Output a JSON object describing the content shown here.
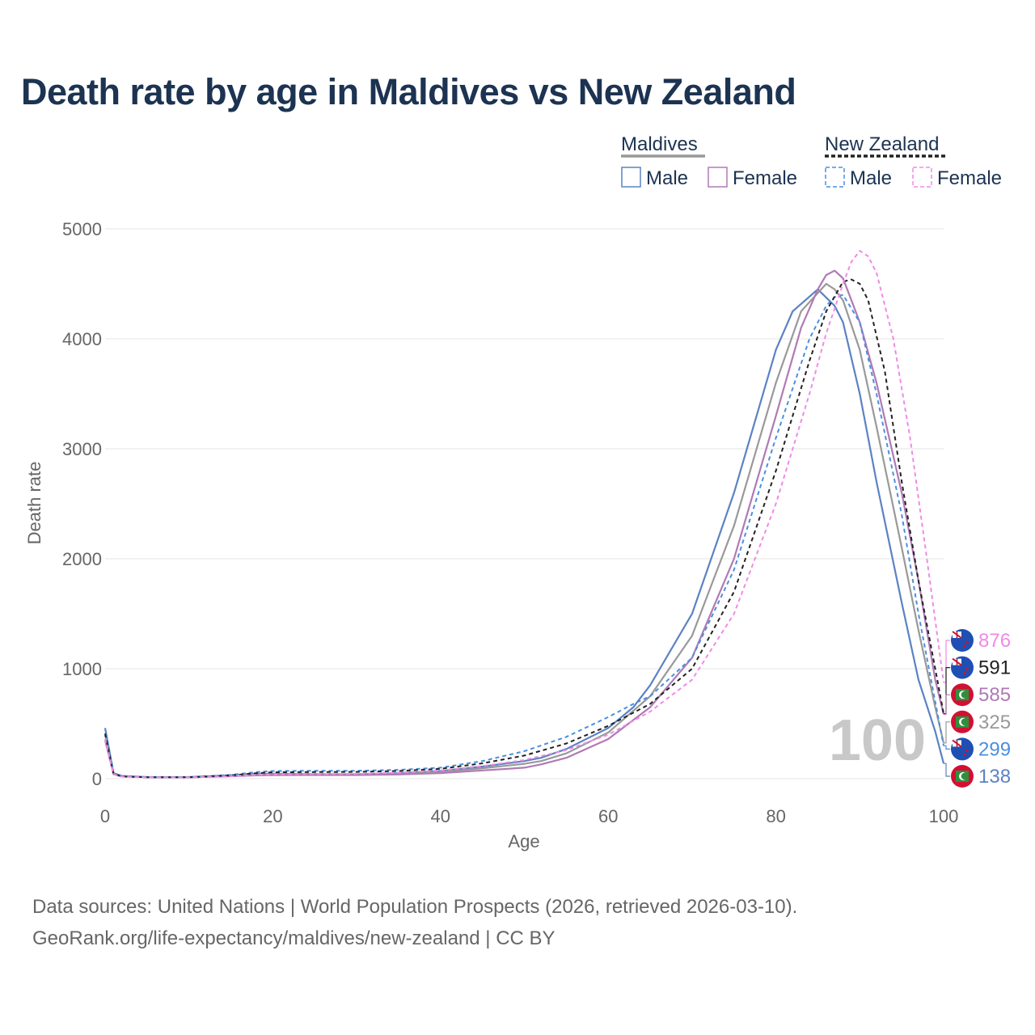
{
  "title": "Death rate by age in Maldives vs New Zealand",
  "source": {
    "line1": "Data sources: United Nations | World Population Prospects (2026, retrieved 2026-03-10).",
    "line2": "GeoRank.org/life-expectancy/maldives/new-zealand | CC BY"
  },
  "legend": {
    "groups": [
      {
        "name": "Maldives",
        "color": "#999999",
        "dash": "solid"
      },
      {
        "name": "New Zealand",
        "color": "#222222",
        "dash": "dashed"
      }
    ],
    "items": [
      {
        "label": "Male",
        "color": "#5b82c4",
        "dash": "solid"
      },
      {
        "label": "Female",
        "color": "#b07ab5",
        "dash": "solid"
      },
      {
        "label": "Male",
        "color": "#4a8fe0",
        "dash": "dashed"
      },
      {
        "label": "Female",
        "color": "#f08ae6",
        "dash": "dashed"
      }
    ]
  },
  "chart_data": {
    "type": "line",
    "title": "Death rate by age in Maldives vs New Zealand",
    "xlabel": "Age",
    "ylabel": "Death rate",
    "xlim": [
      0,
      100
    ],
    "ylim": [
      0,
      5000
    ],
    "xticks": [
      0,
      20,
      40,
      60,
      80,
      100
    ],
    "yticks": [
      0,
      1000,
      2000,
      3000,
      4000,
      5000
    ],
    "grid": true,
    "year_label": "100",
    "series": [
      {
        "name": "Maldives Male",
        "country": "Maldives",
        "sex": "Male",
        "color": "#5b82c4",
        "dash": "solid",
        "flag": "maldives",
        "end_label": "138",
        "x": [
          0,
          1,
          2,
          5,
          10,
          15,
          18,
          20,
          25,
          30,
          35,
          40,
          45,
          50,
          52,
          55,
          60,
          63,
          65,
          70,
          75,
          80,
          82,
          85,
          87,
          88,
          90,
          92,
          95,
          97,
          99,
          100
        ],
        "y": [
          460,
          50,
          25,
          15,
          15,
          30,
          45,
          45,
          42,
          40,
          50,
          70,
          110,
          160,
          190,
          270,
          460,
          650,
          850,
          1500,
          2600,
          3900,
          4250,
          4450,
          4300,
          4150,
          3500,
          2700,
          1600,
          900,
          430,
          138
        ]
      },
      {
        "name": "Maldives Average",
        "country": "Maldives",
        "sex": "All",
        "color": "#999999",
        "dash": "solid",
        "flag": "maldives",
        "end_label": "325",
        "x": [
          0,
          1,
          2,
          5,
          10,
          15,
          18,
          20,
          25,
          30,
          35,
          40,
          45,
          50,
          52,
          55,
          60,
          65,
          70,
          75,
          80,
          83,
          86,
          87,
          88,
          90,
          92,
          95,
          97,
          99,
          100
        ],
        "y": [
          400,
          45,
          22,
          14,
          14,
          26,
          38,
          40,
          38,
          36,
          45,
          60,
          95,
          135,
          160,
          230,
          420,
          750,
          1300,
          2300,
          3600,
          4250,
          4500,
          4450,
          4350,
          3900,
          3200,
          2100,
          1350,
          650,
          325
        ]
      },
      {
        "name": "Maldives Female",
        "country": "Maldives",
        "sex": "Female",
        "color": "#b07ab5",
        "dash": "solid",
        "flag": "maldives",
        "end_label": "585",
        "x": [
          0,
          1,
          2,
          5,
          10,
          15,
          18,
          20,
          25,
          30,
          35,
          40,
          45,
          50,
          52,
          55,
          60,
          65,
          70,
          75,
          80,
          83,
          85,
          86,
          87,
          88,
          90,
          92,
          95,
          97,
          99,
          100
        ],
        "y": [
          350,
          40,
          20,
          13,
          12,
          22,
          30,
          32,
          33,
          33,
          38,
          50,
          75,
          100,
          130,
          190,
          360,
          650,
          1100,
          2000,
          3300,
          4100,
          4450,
          4580,
          4620,
          4550,
          4150,
          3600,
          2600,
          1800,
          900,
          585
        ]
      },
      {
        "name": "New Zealand Male",
        "country": "New Zealand",
        "sex": "Male",
        "color": "#4a8fe0",
        "dash": "dashed",
        "flag": "new-zealand",
        "end_label": "299",
        "x": [
          0,
          1,
          2,
          5,
          10,
          15,
          18,
          20,
          25,
          30,
          35,
          40,
          45,
          50,
          55,
          60,
          63,
          65,
          70,
          75,
          80,
          84,
          86,
          87,
          88,
          90,
          92,
          95,
          97,
          99,
          100
        ],
        "y": [
          460,
          50,
          22,
          14,
          14,
          35,
          60,
          70,
          72,
          72,
          80,
          100,
          160,
          250,
          380,
          560,
          680,
          750,
          1100,
          1900,
          3100,
          4000,
          4300,
          4380,
          4400,
          4150,
          3500,
          2400,
          1500,
          700,
          299
        ]
      },
      {
        "name": "New Zealand Average",
        "country": "New Zealand",
        "sex": "All",
        "color": "#222222",
        "dash": "dashed",
        "flag": "new-zealand",
        "end_label": "591",
        "x": [
          0,
          1,
          2,
          5,
          10,
          15,
          18,
          20,
          25,
          30,
          35,
          40,
          45,
          50,
          55,
          60,
          65,
          70,
          75,
          80,
          84,
          86,
          88,
          89,
          90,
          91,
          93,
          95,
          97,
          99,
          100
        ],
        "y": [
          410,
          45,
          20,
          13,
          13,
          30,
          50,
          58,
          60,
          62,
          70,
          90,
          140,
          210,
          320,
          480,
          680,
          1000,
          1700,
          2800,
          3800,
          4250,
          4520,
          4540,
          4500,
          4350,
          3700,
          2700,
          1800,
          1000,
          591
        ]
      },
      {
        "name": "New Zealand Female",
        "country": "New Zealand",
        "sex": "Female",
        "color": "#f08ae6",
        "dash": "dashed",
        "flag": "new-zealand",
        "end_label": "876",
        "x": [
          0,
          1,
          2,
          5,
          10,
          15,
          18,
          20,
          25,
          30,
          35,
          40,
          45,
          50,
          55,
          60,
          65,
          70,
          75,
          80,
          84,
          86,
          88,
          89,
          90,
          91,
          92,
          94,
          96,
          98,
          100
        ],
        "y": [
          360,
          40,
          18,
          12,
          12,
          22,
          35,
          40,
          42,
          44,
          55,
          75,
          115,
          170,
          260,
          400,
          610,
          900,
          1500,
          2500,
          3500,
          4050,
          4500,
          4700,
          4800,
          4750,
          4600,
          4000,
          3100,
          2000,
          876
        ]
      }
    ]
  }
}
